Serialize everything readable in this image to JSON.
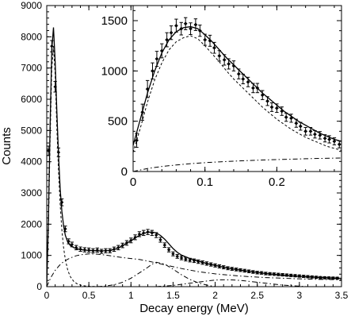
{
  "chart_data": [
    {
      "type": "line",
      "panel": "main",
      "xlabel": "Decay energy (MeV)",
      "ylabel": "Counts",
      "xlim": [
        0,
        3.5
      ],
      "ylim": [
        0,
        9000
      ],
      "xticks": [
        0,
        0.5,
        1,
        1.5,
        2,
        2.5,
        3,
        3.5
      ],
      "xtick_labels": [
        "0",
        "0.5",
        "1",
        "1.5",
        "2",
        "2.5",
        "3",
        "3.5"
      ],
      "yticks": [
        0,
        1000,
        2000,
        3000,
        4000,
        5000,
        6000,
        7000,
        8000,
        9000
      ],
      "ytick_labels": [
        "0",
        "1000",
        "2000",
        "3000",
        "4000",
        "5000",
        "6000",
        "7000",
        "8000",
        "9000"
      ],
      "grid": false,
      "series": [
        {
          "style": "points-with-error-bars",
          "x": [
            0.02,
            0.06,
            0.1,
            0.14,
            0.18,
            0.22,
            0.26,
            0.3,
            0.35,
            0.4,
            0.45,
            0.5,
            0.55,
            0.6,
            0.65,
            0.7,
            0.75,
            0.8,
            0.85,
            0.9,
            0.95,
            1.0,
            1.05,
            1.1,
            1.15,
            1.2,
            1.25,
            1.3,
            1.35,
            1.4,
            1.45,
            1.5,
            1.55,
            1.6,
            1.65,
            1.7,
            1.75,
            1.8,
            1.85,
            1.9,
            1.95,
            2.0,
            2.05,
            2.1,
            2.15,
            2.2,
            2.25,
            2.3,
            2.35,
            2.4,
            2.45,
            2.5,
            2.55,
            2.6,
            2.65,
            2.7,
            2.75,
            2.8,
            2.85,
            2.9,
            2.95,
            3.0,
            3.05,
            3.1,
            3.15,
            3.2,
            3.25,
            3.3,
            3.35,
            3.4,
            3.45
          ],
          "y": [
            4350,
            7700,
            6400,
            4300,
            2700,
            1850,
            1450,
            1350,
            1250,
            1200,
            1180,
            1170,
            1150,
            1170,
            1130,
            1150,
            1150,
            1200,
            1250,
            1320,
            1400,
            1480,
            1580,
            1680,
            1720,
            1750,
            1720,
            1650,
            1500,
            1330,
            1180,
            1050,
            970,
            920,
            880,
            850,
            830,
            800,
            770,
            740,
            710,
            680,
            650,
            620,
            590,
            570,
            550,
            530,
            510,
            490,
            470,
            450,
            440,
            420,
            410,
            400,
            390,
            380,
            370,
            360,
            350,
            340,
            330,
            320,
            310,
            300,
            290,
            285,
            280,
            275,
            270
          ],
          "yerr": [
            150,
            180,
            170,
            140,
            110,
            90,
            80,
            75,
            70,
            70,
            68,
            68,
            66,
            68,
            66,
            66,
            66,
            68,
            70,
            72,
            74,
            76,
            78,
            80,
            82,
            82,
            82,
            80,
            76,
            72,
            68,
            64,
            62,
            60,
            58,
            58,
            57,
            56,
            55,
            54,
            53,
            52,
            51,
            50,
            48,
            47,
            46,
            45,
            45,
            44,
            43,
            42,
            42,
            41,
            40,
            40,
            39,
            39,
            38,
            38,
            37,
            37,
            36,
            36,
            35,
            35,
            34,
            34,
            34,
            33,
            33
          ]
        },
        {
          "style": "solid",
          "x": [
            0.0,
            0.02,
            0.04,
            0.06,
            0.08,
            0.1,
            0.12,
            0.14,
            0.16,
            0.18,
            0.2,
            0.22,
            0.25,
            0.28,
            0.32,
            0.36,
            0.4,
            0.45,
            0.5,
            0.55,
            0.6,
            0.65,
            0.7,
            0.75,
            0.8,
            0.85,
            0.9,
            0.95,
            1.0,
            1.05,
            1.1,
            1.15,
            1.2,
            1.25,
            1.3,
            1.35,
            1.4,
            1.45,
            1.5,
            1.55,
            1.6,
            1.7,
            1.8,
            1.9,
            2.0,
            2.2,
            2.4,
            2.6,
            2.8,
            3.0,
            3.2,
            3.4,
            3.5
          ],
          "y": [
            0,
            2200,
            5200,
            7600,
            8300,
            7200,
            5600,
            4200,
            3100,
            2400,
            1950,
            1650,
            1420,
            1320,
            1250,
            1210,
            1190,
            1170,
            1160,
            1155,
            1150,
            1148,
            1150,
            1160,
            1190,
            1240,
            1310,
            1390,
            1470,
            1560,
            1640,
            1700,
            1740,
            1750,
            1720,
            1640,
            1520,
            1370,
            1220,
            1100,
            1010,
            900,
            820,
            740,
            680,
            570,
            490,
            420,
            370,
            330,
            300,
            275,
            265
          ]
        },
        {
          "style": "dashed",
          "x": [
            0.0,
            0.02,
            0.04,
            0.06,
            0.08,
            0.1,
            0.12,
            0.14,
            0.16,
            0.18,
            0.2,
            0.22,
            0.25,
            0.28,
            0.32,
            0.36,
            0.4,
            0.45,
            0.5,
            0.55,
            0.6,
            0.7
          ],
          "y": [
            0,
            1900,
            4700,
            7000,
            7700,
            6800,
            5100,
            3700,
            2600,
            1800,
            1250,
            880,
            520,
            320,
            170,
            90,
            50,
            25,
            12,
            6,
            3,
            0
          ]
        },
        {
          "style": "dash-dot",
          "x": [
            0.0,
            0.05,
            0.1,
            0.15,
            0.2,
            0.25,
            0.3,
            0.35,
            0.4,
            0.5,
            0.6,
            0.7,
            0.8,
            0.9,
            1.0,
            1.1,
            1.2,
            1.3,
            1.4,
            1.5,
            1.6,
            1.7,
            1.8,
            2.0,
            2.2,
            2.4,
            2.6,
            2.8,
            3.0,
            3.2,
            3.4,
            3.5
          ],
          "y": [
            0,
            300,
            520,
            680,
            800,
            880,
            940,
            990,
            1020,
            1050,
            1040,
            1010,
            970,
            930,
            900,
            870,
            820,
            760,
            700,
            640,
            580,
            530,
            480,
            410,
            360,
            320,
            290,
            270,
            250,
            235,
            225,
            220
          ]
        },
        {
          "style": "dash-dot",
          "x": [
            0.6,
            0.7,
            0.8,
            0.9,
            1.0,
            1.1,
            1.2,
            1.25,
            1.3,
            1.4,
            1.5,
            1.6,
            1.7,
            1.8,
            1.9,
            2.0
          ],
          "y": [
            0,
            20,
            60,
            140,
            270,
            440,
            620,
            720,
            780,
            720,
            560,
            380,
            230,
            120,
            50,
            0
          ]
        },
        {
          "style": "dash-dot",
          "x": [
            1.3,
            1.5,
            1.7,
            1.9,
            2.0,
            2.1,
            2.2,
            2.3,
            2.4,
            2.6,
            2.8,
            3.0,
            3.1
          ],
          "y": [
            0,
            40,
            110,
            180,
            210,
            220,
            215,
            200,
            170,
            110,
            50,
            15,
            0
          ]
        }
      ]
    },
    {
      "type": "line",
      "panel": "inset",
      "xlim": [
        0,
        0.29
      ],
      "ylim": [
        0,
        1650
      ],
      "xticks": [
        0,
        0.1,
        0.2
      ],
      "xtick_labels": [
        "0",
        "0.1",
        "0.2"
      ],
      "yticks": [
        0,
        500,
        1000,
        1500
      ],
      "ytick_labels": [
        "0",
        "500",
        "1000",
        "1500"
      ],
      "grid": false,
      "series": [
        {
          "style": "points-with-error-bars",
          "x": [
            0.005,
            0.013,
            0.02,
            0.027,
            0.033,
            0.04,
            0.047,
            0.053,
            0.06,
            0.067,
            0.073,
            0.08,
            0.087,
            0.093,
            0.1,
            0.107,
            0.113,
            0.12,
            0.127,
            0.133,
            0.14,
            0.147,
            0.153,
            0.16,
            0.167,
            0.173,
            0.18,
            0.187,
            0.193,
            0.2,
            0.207,
            0.213,
            0.22,
            0.227,
            0.233,
            0.24,
            0.247,
            0.253,
            0.26,
            0.267,
            0.273,
            0.28,
            0.287
          ],
          "y": [
            310,
            590,
            820,
            1000,
            1120,
            1200,
            1310,
            1380,
            1450,
            1420,
            1470,
            1420,
            1460,
            1400,
            1310,
            1300,
            1230,
            1150,
            1110,
            1070,
            1050,
            970,
            920,
            890,
            830,
            830,
            760,
            700,
            640,
            630,
            600,
            540,
            530,
            480,
            450,
            400,
            400,
            370,
            360,
            330,
            320,
            300,
            270
          ],
          "yerr": [
            70,
            80,
            85,
            80,
            75,
            70,
            70,
            68,
            65,
            62,
            60,
            58,
            58,
            56,
            55,
            55,
            54,
            52,
            52,
            51,
            50,
            49,
            48,
            47,
            46,
            46,
            45,
            44,
            43,
            42,
            42,
            41,
            40,
            40,
            39,
            38,
            38,
            37,
            37,
            36,
            36,
            35,
            35
          ]
        },
        {
          "style": "solid",
          "x": [
            0.0,
            0.01,
            0.02,
            0.03,
            0.04,
            0.05,
            0.06,
            0.07,
            0.08,
            0.09,
            0.1,
            0.11,
            0.12,
            0.13,
            0.14,
            0.15,
            0.16,
            0.17,
            0.18,
            0.19,
            0.2,
            0.21,
            0.22,
            0.23,
            0.24,
            0.25,
            0.26,
            0.27,
            0.28,
            0.29
          ],
          "y": [
            260,
            520,
            780,
            1000,
            1180,
            1310,
            1390,
            1430,
            1440,
            1420,
            1360,
            1290,
            1210,
            1130,
            1060,
            990,
            920,
            850,
            780,
            720,
            660,
            600,
            550,
            500,
            460,
            420,
            380,
            350,
            320,
            300
          ]
        },
        {
          "style": "dashed",
          "x": [
            0.0,
            0.01,
            0.02,
            0.03,
            0.04,
            0.05,
            0.06,
            0.07,
            0.08,
            0.09,
            0.1,
            0.11,
            0.12,
            0.13,
            0.14,
            0.15,
            0.16,
            0.17,
            0.18,
            0.19,
            0.2,
            0.21,
            0.22,
            0.23,
            0.24,
            0.25,
            0.26,
            0.27,
            0.28,
            0.29
          ],
          "y": [
            190,
            430,
            690,
            910,
            1080,
            1210,
            1290,
            1330,
            1350,
            1320,
            1250,
            1170,
            1090,
            1000,
            920,
            850,
            780,
            710,
            640,
            580,
            520,
            470,
            420,
            380,
            340,
            310,
            280,
            250,
            230,
            210
          ]
        },
        {
          "style": "dash-dot",
          "x": [
            0.0,
            0.02,
            0.04,
            0.06,
            0.08,
            0.1,
            0.12,
            0.14,
            0.16,
            0.18,
            0.2,
            0.22,
            0.24,
            0.26,
            0.28,
            0.29
          ],
          "y": [
            0,
            30,
            50,
            65,
            78,
            88,
            96,
            103,
            109,
            114,
            119,
            123,
            127,
            130,
            133,
            135
          ]
        }
      ]
    }
  ]
}
